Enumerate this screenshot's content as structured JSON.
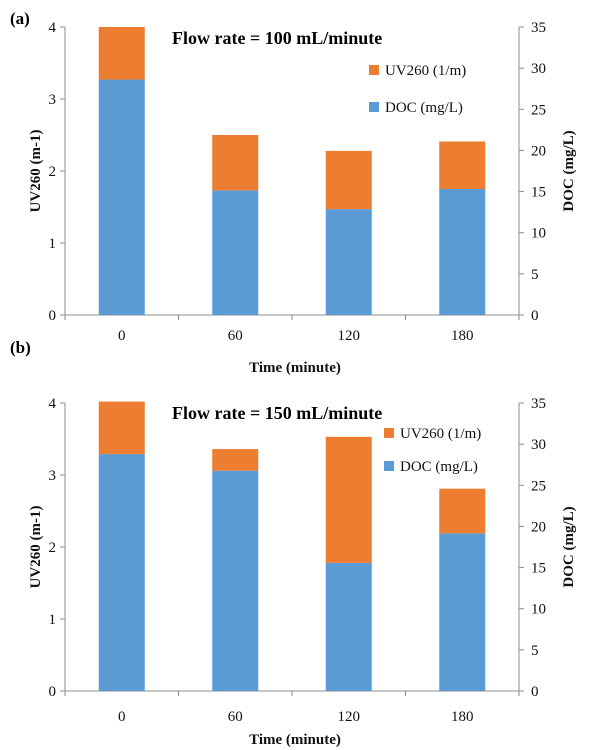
{
  "chart_data": [
    {
      "type": "bar",
      "stacked": true,
      "panel_label": "(a)",
      "title": "Flow rate = 100 mL/minute",
      "xlabel": "Time (minute)",
      "ylabel": "UV260 (m-1)",
      "y2label": "DOC (mg/L)",
      "ylim": [
        0,
        4
      ],
      "y2lim": [
        0,
        35
      ],
      "yticks": [
        "0",
        "1",
        "2",
        "3",
        "4"
      ],
      "y2ticks": [
        "0",
        "5",
        "10",
        "15",
        "20",
        "25",
        "30",
        "35"
      ],
      "categories": [
        "0",
        "60",
        "120",
        "180"
      ],
      "legend_position": "top-right",
      "series": [
        {
          "name": "DOC (mg/L)",
          "color": "#5b9bd5",
          "values": [
            3.27,
            1.73,
            1.47,
            1.75
          ]
        },
        {
          "name": "UV260 (1/m)",
          "color": "#ed7d31",
          "values": [
            0.73,
            0.77,
            0.81,
            0.66
          ]
        }
      ]
    },
    {
      "type": "bar",
      "stacked": true,
      "panel_label": "(b)",
      "title": "Flow rate = 150 mL/minute",
      "xlabel": "Time (minute)",
      "ylabel": "UV260 (m-1)",
      "y2label": "DOC (mg/L)",
      "ylim": [
        0,
        4
      ],
      "y2lim": [
        0,
        35
      ],
      "yticks": [
        "0",
        "1",
        "2",
        "3",
        "4"
      ],
      "y2ticks": [
        "0",
        "5",
        "10",
        "15",
        "20",
        "25",
        "30",
        "35"
      ],
      "categories": [
        "0",
        "60",
        "120",
        "180"
      ],
      "legend_position": "top-right",
      "series": [
        {
          "name": "DOC (mg/L)",
          "color": "#5b9bd5",
          "values": [
            3.29,
            3.06,
            1.78,
            2.19
          ]
        },
        {
          "name": "UV260 (1/m)",
          "color": "#ed7d31",
          "values": [
            0.73,
            0.3,
            1.75,
            0.62
          ]
        }
      ]
    }
  ]
}
